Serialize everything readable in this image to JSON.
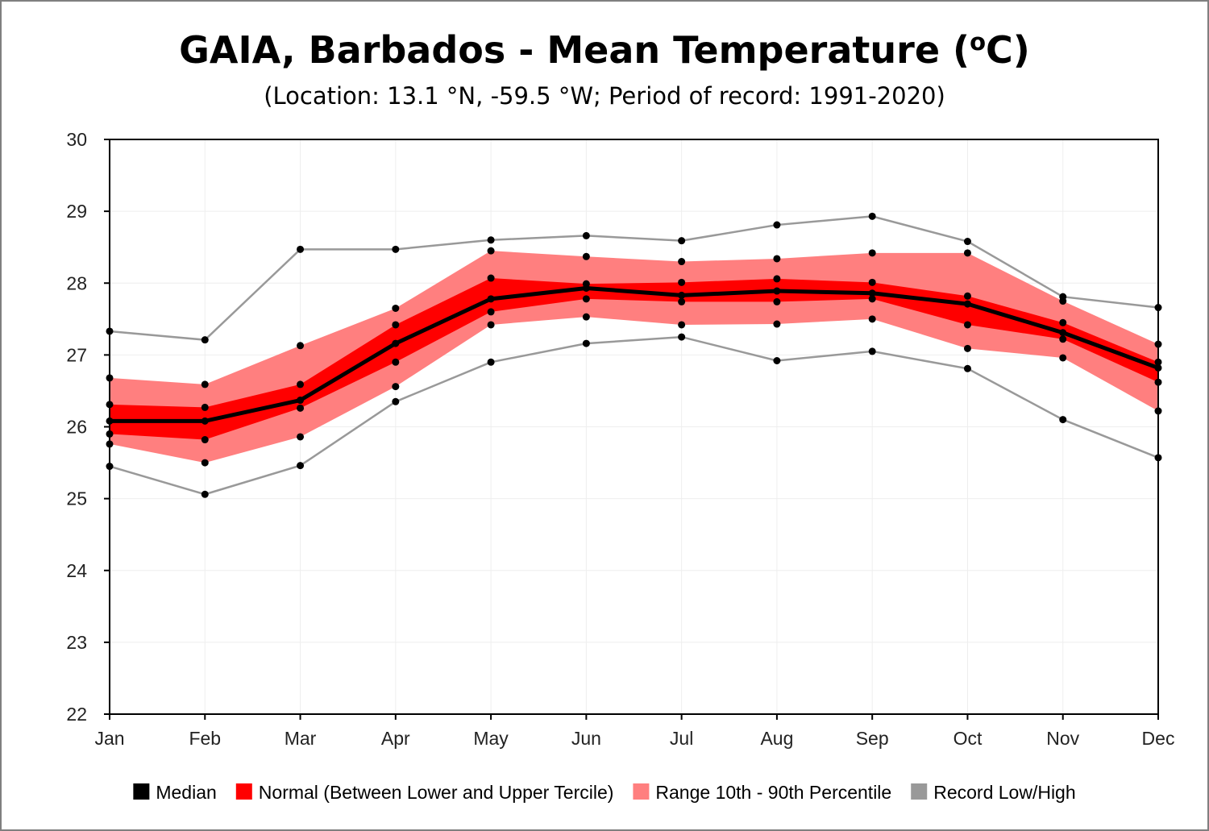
{
  "chart_data": {
    "type": "line",
    "title_main": "GAIA, Barbados - Mean Temperature (",
    "title_sup": "o",
    "title_end": "C)",
    "subtitle": "(Location: 13.1 °N, -59.5 °W; Period of record: 1991-2020)",
    "xlabel": "",
    "ylabel": "",
    "ylim": [
      22,
      30
    ],
    "yticks": [
      "22",
      "23",
      "24",
      "25",
      "26",
      "27",
      "28",
      "29",
      "30"
    ],
    "categories": [
      "Jan",
      "Feb",
      "Mar",
      "Apr",
      "May",
      "Jun",
      "Jul",
      "Aug",
      "Sep",
      "Oct",
      "Nov",
      "Dec"
    ],
    "grid": true,
    "legend_position": "bottom",
    "series": [
      {
        "name": "Record Low/High",
        "role": "record_high",
        "values": [
          27.33,
          27.21,
          28.47,
          28.47,
          28.6,
          28.66,
          28.59,
          28.81,
          28.93,
          28.58,
          27.81,
          27.66
        ]
      },
      {
        "name": "Record Low/High",
        "role": "record_low",
        "values": [
          25.45,
          25.06,
          25.46,
          26.35,
          26.9,
          27.16,
          27.25,
          26.92,
          27.05,
          26.81,
          26.1,
          25.57
        ]
      },
      {
        "name": "Range 10th - 90th Percentile",
        "role": "p90",
        "values": [
          26.68,
          26.59,
          27.13,
          27.65,
          28.45,
          28.37,
          28.3,
          28.34,
          28.42,
          28.42,
          27.75,
          27.15
        ]
      },
      {
        "name": "Range 10th - 90th Percentile",
        "role": "p10",
        "values": [
          25.76,
          25.5,
          25.86,
          26.56,
          27.42,
          27.53,
          27.42,
          27.43,
          27.5,
          27.09,
          26.96,
          26.22
        ]
      },
      {
        "name": "Normal (Between Lower and Upper Tercile)",
        "role": "upper_tercile",
        "values": [
          26.31,
          26.27,
          26.59,
          27.42,
          28.07,
          27.99,
          28.01,
          28.06,
          28.01,
          27.82,
          27.45,
          26.9
        ]
      },
      {
        "name": "Normal (Between Lower and Upper Tercile)",
        "role": "lower_tercile",
        "values": [
          25.9,
          25.82,
          26.26,
          26.9,
          27.6,
          27.78,
          27.74,
          27.74,
          27.78,
          27.42,
          27.22,
          26.62
        ]
      },
      {
        "name": "Median",
        "role": "median",
        "values": [
          26.08,
          26.08,
          26.37,
          27.16,
          27.78,
          27.93,
          27.83,
          27.89,
          27.86,
          27.71,
          27.31,
          26.82
        ]
      }
    ],
    "colors": {
      "median": "#000000",
      "normal": "#ff0000",
      "range": "#ff7f7f",
      "record": "#999999",
      "grid": "#eeeeee",
      "axis": "#000000"
    },
    "legend": [
      {
        "label": "Median",
        "color": "#000000"
      },
      {
        "label": "Normal (Between Lower and Upper Tercile)",
        "color": "#ff0000"
      },
      {
        "label": "Range 10th - 90th Percentile",
        "color": "#ff7f7f"
      },
      {
        "label": "Record Low/High",
        "color": "#999999"
      }
    ]
  }
}
